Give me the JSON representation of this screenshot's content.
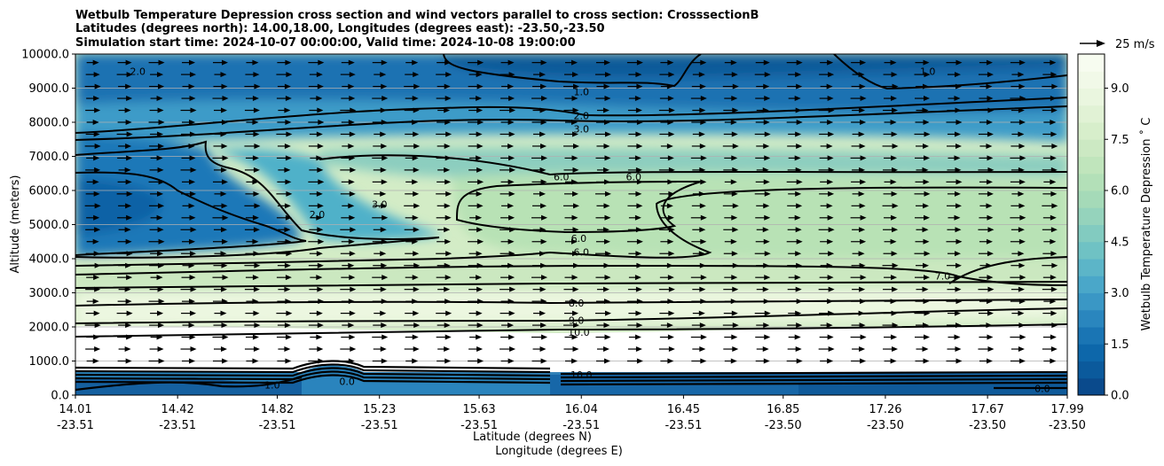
{
  "chart_data": {
    "type": "contour",
    "title_lines": [
      "Wetbulb Temperature Depression cross section and wind vectors parallel to cross section: CrosssectionB",
      "Latitudes (degrees north): 14.00,18.00, Longitudes (degrees east): -23.50,-23.50",
      "Simulation start time: 2024-10-07 00:00:00, Valid time: 2024-10-08 19:00:00"
    ],
    "ylabel": "Altitude (meters)",
    "xlabel_lat": "Latitude (degrees N)",
    "xlabel_lon": "Longitude (degrees E)",
    "ylim": [
      0,
      10000
    ],
    "y_ticks": [
      "0.0",
      "1000.0",
      "2000.0",
      "3000.0",
      "4000.0",
      "5000.0",
      "6000.0",
      "7000.0",
      "8000.0",
      "9000.0",
      "10000.0"
    ],
    "x_ticks": [
      {
        "lat": "14.01",
        "lon": "-23.51"
      },
      {
        "lat": "14.42",
        "lon": "-23.51"
      },
      {
        "lat": "14.82",
        "lon": "-23.51"
      },
      {
        "lat": "15.23",
        "lon": "-23.51"
      },
      {
        "lat": "15.63",
        "lon": "-23.51"
      },
      {
        "lat": "16.04",
        "lon": "-23.51"
      },
      {
        "lat": "16.45",
        "lon": "-23.51"
      },
      {
        "lat": "16.85",
        "lon": "-23.50"
      },
      {
        "lat": "17.26",
        "lon": "-23.50"
      },
      {
        "lat": "17.67",
        "lon": "-23.50"
      },
      {
        "lat": "17.99",
        "lon": "-23.50"
      }
    ],
    "xlim": [
      14.01,
      17.99
    ],
    "grid": "horizontal",
    "colorbar": {
      "label": "Wetbulb Temperature Depression ˚ C",
      "range": [
        0,
        10
      ],
      "ticks": [
        "0.0",
        "1.5",
        "3.0",
        "4.5",
        "6.0",
        "7.5",
        "9.0"
      ],
      "levels": 20,
      "colors_low_to_high": [
        "#0a4a8c",
        "#0b5a9c",
        "#0d67aa",
        "#1a75b4",
        "#2a86be",
        "#3a97c5",
        "#4aa7c9",
        "#5cb5c8",
        "#6fc2c4",
        "#82cbc0",
        "#95d3bc",
        "#a5dab8",
        "#b3e0b8",
        "#c0e5bc",
        "#cce9c3",
        "#d7eecb",
        "#e1f2d5",
        "#eaf6df",
        "#f1f9e8",
        "#f7fcf0"
      ]
    },
    "wind_key": {
      "label": "25 m/s"
    },
    "wind": "mostly eastward (northward along section) ~15-20 m/s at all levels",
    "contour_labels": [
      {
        "text": "1.0",
        "lat": 16.04,
        "alt": 8900
      },
      {
        "text": "2.0",
        "lat": 16.04,
        "alt": 8200
      },
      {
        "text": "3.0",
        "lat": 16.04,
        "alt": 7800
      },
      {
        "text": "6.0",
        "lat": 15.96,
        "alt": 6400
      },
      {
        "text": "6.0",
        "lat": 16.25,
        "alt": 6400
      },
      {
        "text": "6.0",
        "lat": 16.03,
        "alt": 4600
      },
      {
        "text": "6.0",
        "lat": 16.04,
        "alt": 4200
      },
      {
        "text": "8.0",
        "lat": 16.02,
        "alt": 2700
      },
      {
        "text": "9.0",
        "lat": 16.02,
        "alt": 2200
      },
      {
        "text": "10.0",
        "lat": 16.03,
        "alt": 1850
      },
      {
        "text": "10.0",
        "lat": 16.04,
        "alt": 600
      },
      {
        "text": "1.0",
        "lat": 17.43,
        "alt": 9500
      },
      {
        "text": "7.0",
        "lat": 17.49,
        "alt": 3500
      },
      {
        "text": "2.0",
        "lat": 14.26,
        "alt": 9500
      },
      {
        "text": "2.0",
        "lat": 14.98,
        "alt": 5300
      },
      {
        "text": "3.0",
        "lat": 15.23,
        "alt": 5600
      },
      {
        "text": "0.0",
        "lat": 15.1,
        "alt": 400
      },
      {
        "text": "1.0",
        "lat": 14.8,
        "alt": 300
      },
      {
        "text": "0.0",
        "lat": 17.89,
        "alt": 200
      }
    ]
  }
}
